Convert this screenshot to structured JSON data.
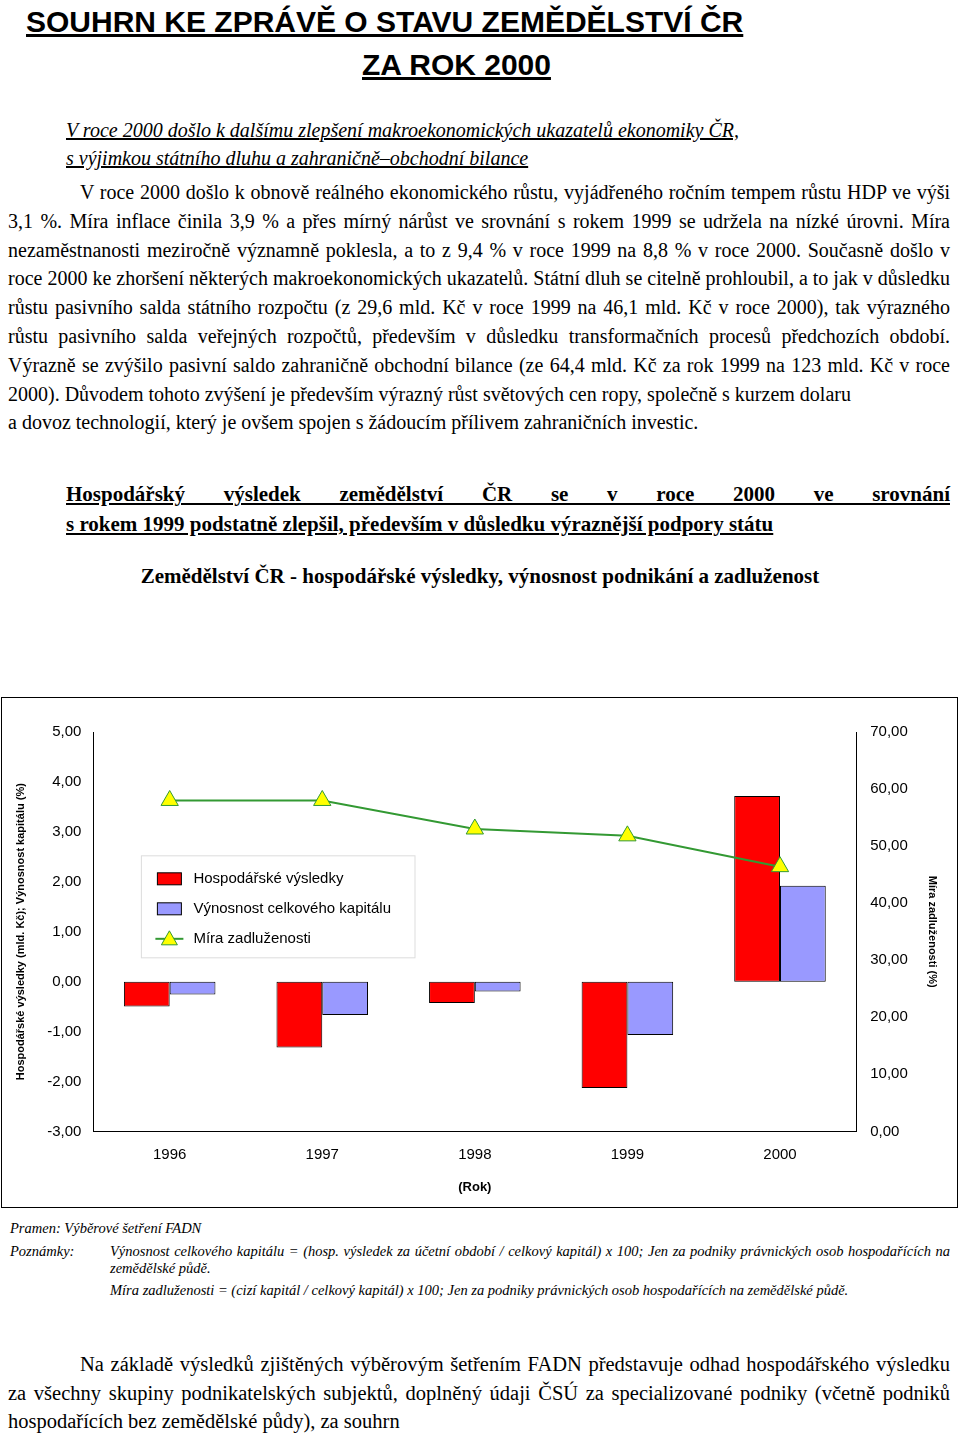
{
  "title": [
    "SOUHRN KE ZPRÁVĚ O STAVU ZEMĚDĚLSTVÍ ČR",
    "ZA ROK 2000"
  ],
  "subtitle": [
    "V roce 2000 došlo k dalšímu zlepšení makroekonomických ukazatelů ekonomiky ČR,",
    "s výjimkou státního dluhu a zahraničně–obchodní bilance"
  ],
  "paragraphs": [
    "V roce 2000 došlo k obnově reálného ekonomického růstu, vyjádřeného ročním tempem růstu HDP ve výši 3,1 %. Míra inflace činila 3,9 % a přes mírný nárůst ve srovnání s rokem 1999 se udržela na nízké úrovni. Míra nezaměstnanosti meziročně významně poklesla, a to z 9,4 % v roce 1999 na 8,8 % v roce 2000. Současně došlo v roce 2000 ke zhoršení některých makroekonomických ukazatelů. Státní dluh se citelně prohloubil, a to jak v důsledku růstu pasivního salda státního rozpočtu (z 29,6 mld. Kč v roce 1999 na 46,1 mld. Kč v roce 2000), tak výrazného růstu pasivního salda veřejných rozpočtů, především v důsledku transformačních procesů předchozích období. Výrazně se zvýšilo pasivní saldo zahraničně obchodní bilance (ze 64,4 mld. Kč za rok 1999 na 123 mld. Kč v roce 2000). Důvodem tohoto zvýšení je především výrazný růst světových cen ropy, společně s kurzem dolaru",
    "a dovoz technologií, který je ovšem spojen s žádoucím přílivem zahraničních investic."
  ],
  "heading": [
    "Hospodářský výsledek zemědělství ČR se v roce 2000 ve srovnání",
    "s rokem 1999 podstatně zlepšil, především v důsledku výraznější podpory státu"
  ],
  "chart_data": {
    "type": "bar",
    "title": "Zemědělství ČR - hospodářské výsledky, výnosnost podnikání a zadluženost",
    "categories": [
      "1996",
      "1997",
      "1998",
      "1999",
      "2000"
    ],
    "xlabel": "(Rok)",
    "ylabel": "Hospodářské výsledky (mld. Kč); Výnosnost kapitálu (%)",
    "y2label": "Míra zadluženosti (%)",
    "series": [
      {
        "name": "Hospodářské výsledky",
        "type": "bar",
        "color": "#ff0000",
        "values": [
          -0.5,
          -1.32,
          -0.43,
          -2.13,
          3.72
        ]
      },
      {
        "name": "Výnosnost celkového kapitálu",
        "type": "bar",
        "color": "#9999ff",
        "values": [
          -0.26,
          -0.67,
          -0.2,
          -1.07,
          1.92
        ]
      },
      {
        "name": "Míra zadluženosti",
        "type": "line",
        "color": "#339933",
        "marker": "triangle",
        "axis": "y2",
        "values": [
          58.0,
          58.0,
          53.0,
          51.8,
          46.4
        ]
      }
    ],
    "ylim": [
      -3,
      5
    ],
    "yticks": [
      {
        "value": -3,
        "label": "-3,00"
      },
      {
        "value": -2,
        "label": "-2,00"
      },
      {
        "value": -1,
        "label": "-1,00"
      },
      {
        "value": 0,
        "label": "0,00"
      },
      {
        "value": 1,
        "label": "1,00"
      },
      {
        "value": 2,
        "label": "2,00"
      },
      {
        "value": 3,
        "label": "3,00"
      },
      {
        "value": 4,
        "label": "4,00"
      },
      {
        "value": 5,
        "label": "5,00"
      }
    ],
    "y2lim": [
      0,
      70
    ],
    "y2ticks": [
      {
        "value": 0,
        "label": "0,00"
      },
      {
        "value": 10,
        "label": "10,00"
      },
      {
        "value": 20,
        "label": "20,00"
      },
      {
        "value": 30,
        "label": "30,00"
      },
      {
        "value": 40,
        "label": "40,00"
      },
      {
        "value": 50,
        "label": "50,00"
      },
      {
        "value": 60,
        "label": "60,00"
      },
      {
        "value": 70,
        "label": "70,00"
      }
    ],
    "grid": false,
    "legend": "left"
  },
  "source": "Pramen: Výběrové šetření FADN",
  "notes": {
    "label": "Poznámky:",
    "items": [
      "Výnosnost celkového kapitálu = (hosp. výsledek za účetní období / celkový kapitál) x 100; Jen za podniky právnických osob hospodařících na zemědělské půdě.",
      "Míra zadluženosti = (cizí kapitál / celkový kapitál) x 100; Jen za podniky právnických osob hospodařících na zemědělské půdě."
    ]
  },
  "last_paragraph": "Na základě výsledků zjištěných výběrovým šetřením FADN představuje odhad hospodářského výsledku za všechny skupiny podnikatelských subjektů, doplněný údaji ČSÚ za specializované podniky (včetně podniků hospodařících bez zemědělské půdy), za souhrn"
}
